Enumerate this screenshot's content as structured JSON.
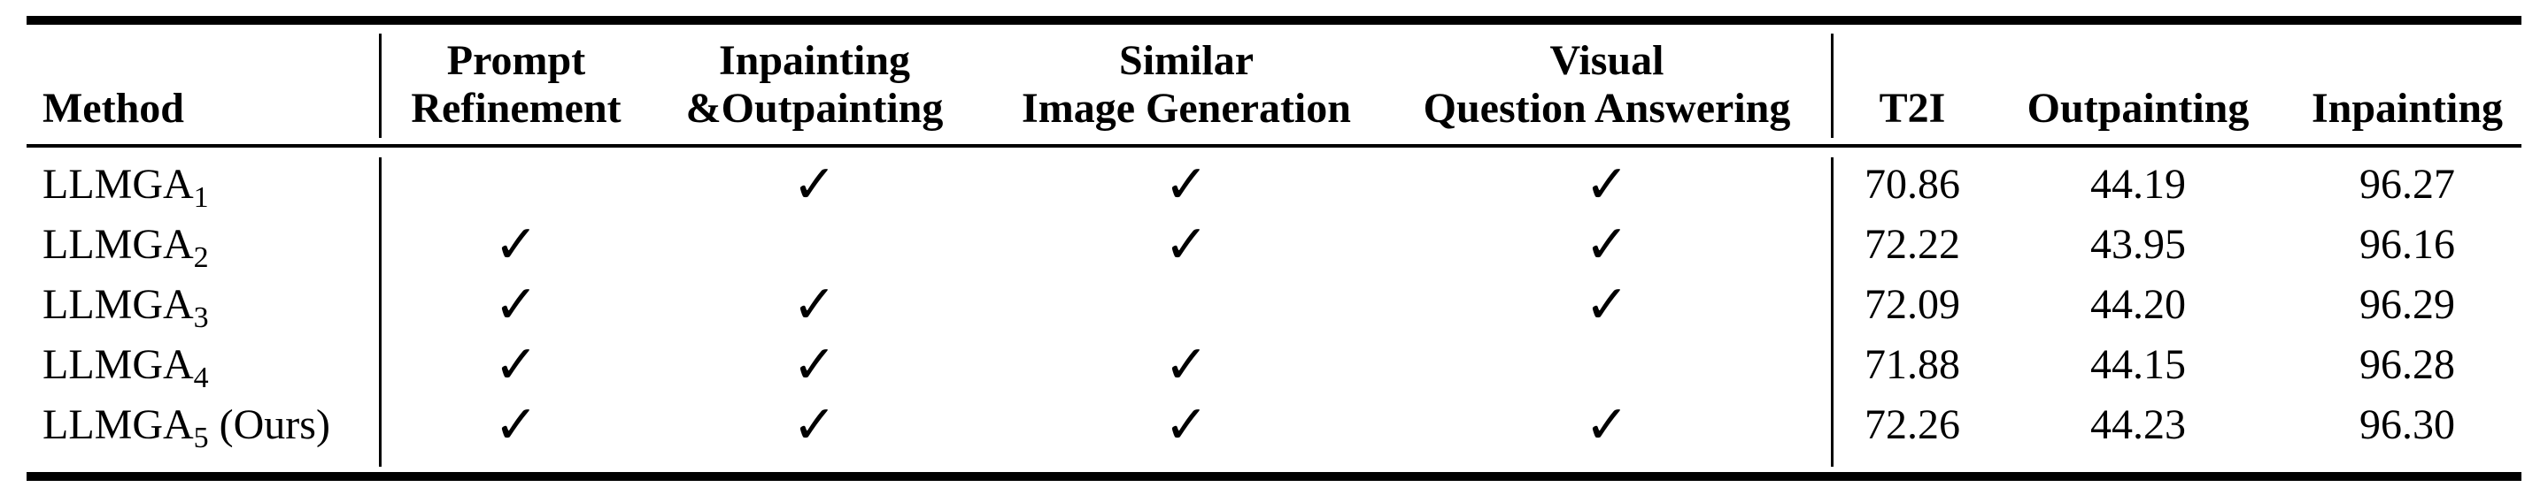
{
  "table": {
    "headers": {
      "method": "Method",
      "prompt_refinement": [
        "Prompt",
        "Refinement"
      ],
      "inpainting_outpainting": [
        "Inpainting",
        "&Outpainting"
      ],
      "similar_image_generation": [
        "Similar",
        "Image Generation"
      ],
      "visual_question_answering": [
        "Visual",
        "Question Answering"
      ],
      "t2i": "T2I",
      "outpainting": "Outpainting",
      "inpainting": "Inpainting"
    },
    "check_symbol": "✓",
    "rows": [
      {
        "method": "LLMGA",
        "sub": "1",
        "suffix": "",
        "checks": [
          false,
          true,
          true,
          true
        ],
        "t2i": "70.86",
        "outpainting": "44.19",
        "inpainting": "96.27"
      },
      {
        "method": "LLMGA",
        "sub": "2",
        "suffix": "",
        "checks": [
          true,
          false,
          true,
          true
        ],
        "t2i": "72.22",
        "outpainting": "43.95",
        "inpainting": "96.16"
      },
      {
        "method": "LLMGA",
        "sub": "3",
        "suffix": "",
        "checks": [
          true,
          true,
          false,
          true
        ],
        "t2i": "72.09",
        "outpainting": "44.20",
        "inpainting": "96.29"
      },
      {
        "method": "LLMGA",
        "sub": "4",
        "suffix": "",
        "checks": [
          true,
          true,
          true,
          false
        ],
        "t2i": "71.88",
        "outpainting": "44.15",
        "inpainting": "96.28"
      },
      {
        "method": "LLMGA",
        "sub": "5",
        "suffix": " (Ours)",
        "checks": [
          true,
          true,
          true,
          true
        ],
        "t2i": "72.26",
        "outpainting": "44.23",
        "inpainting": "96.30"
      }
    ]
  }
}
